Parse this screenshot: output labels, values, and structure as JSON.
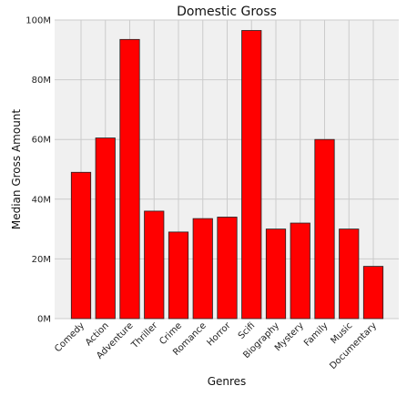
{
  "chart_data": {
    "type": "bar",
    "title": "Domestic Gross",
    "xlabel": "Genres",
    "ylabel": "Median Gross Amount",
    "categories": [
      "Comedy",
      "Action",
      "Adventure",
      "Thriller",
      "Crime",
      "Romance",
      "Horror",
      "Scifi",
      "Biography",
      "Mystery",
      "Family",
      "Music",
      "Documentary"
    ],
    "values": [
      49000000,
      60500000,
      93500000,
      36000000,
      29000000,
      33500000,
      34000000,
      96500000,
      30000000,
      32000000,
      60000000,
      30000000,
      17500000
    ],
    "ylim": [
      0,
      100000000
    ],
    "yticks": [
      0,
      20000000,
      40000000,
      60000000,
      80000000,
      100000000
    ],
    "ytick_labels": [
      "0M",
      "20M",
      "40M",
      "60M",
      "80M",
      "100M"
    ],
    "grid": true,
    "colors": {
      "bar_fill": "#ff0000",
      "bar_edge": "#222222",
      "plot_background": "#f0f0f0",
      "grid": "#cbcbcb"
    }
  }
}
